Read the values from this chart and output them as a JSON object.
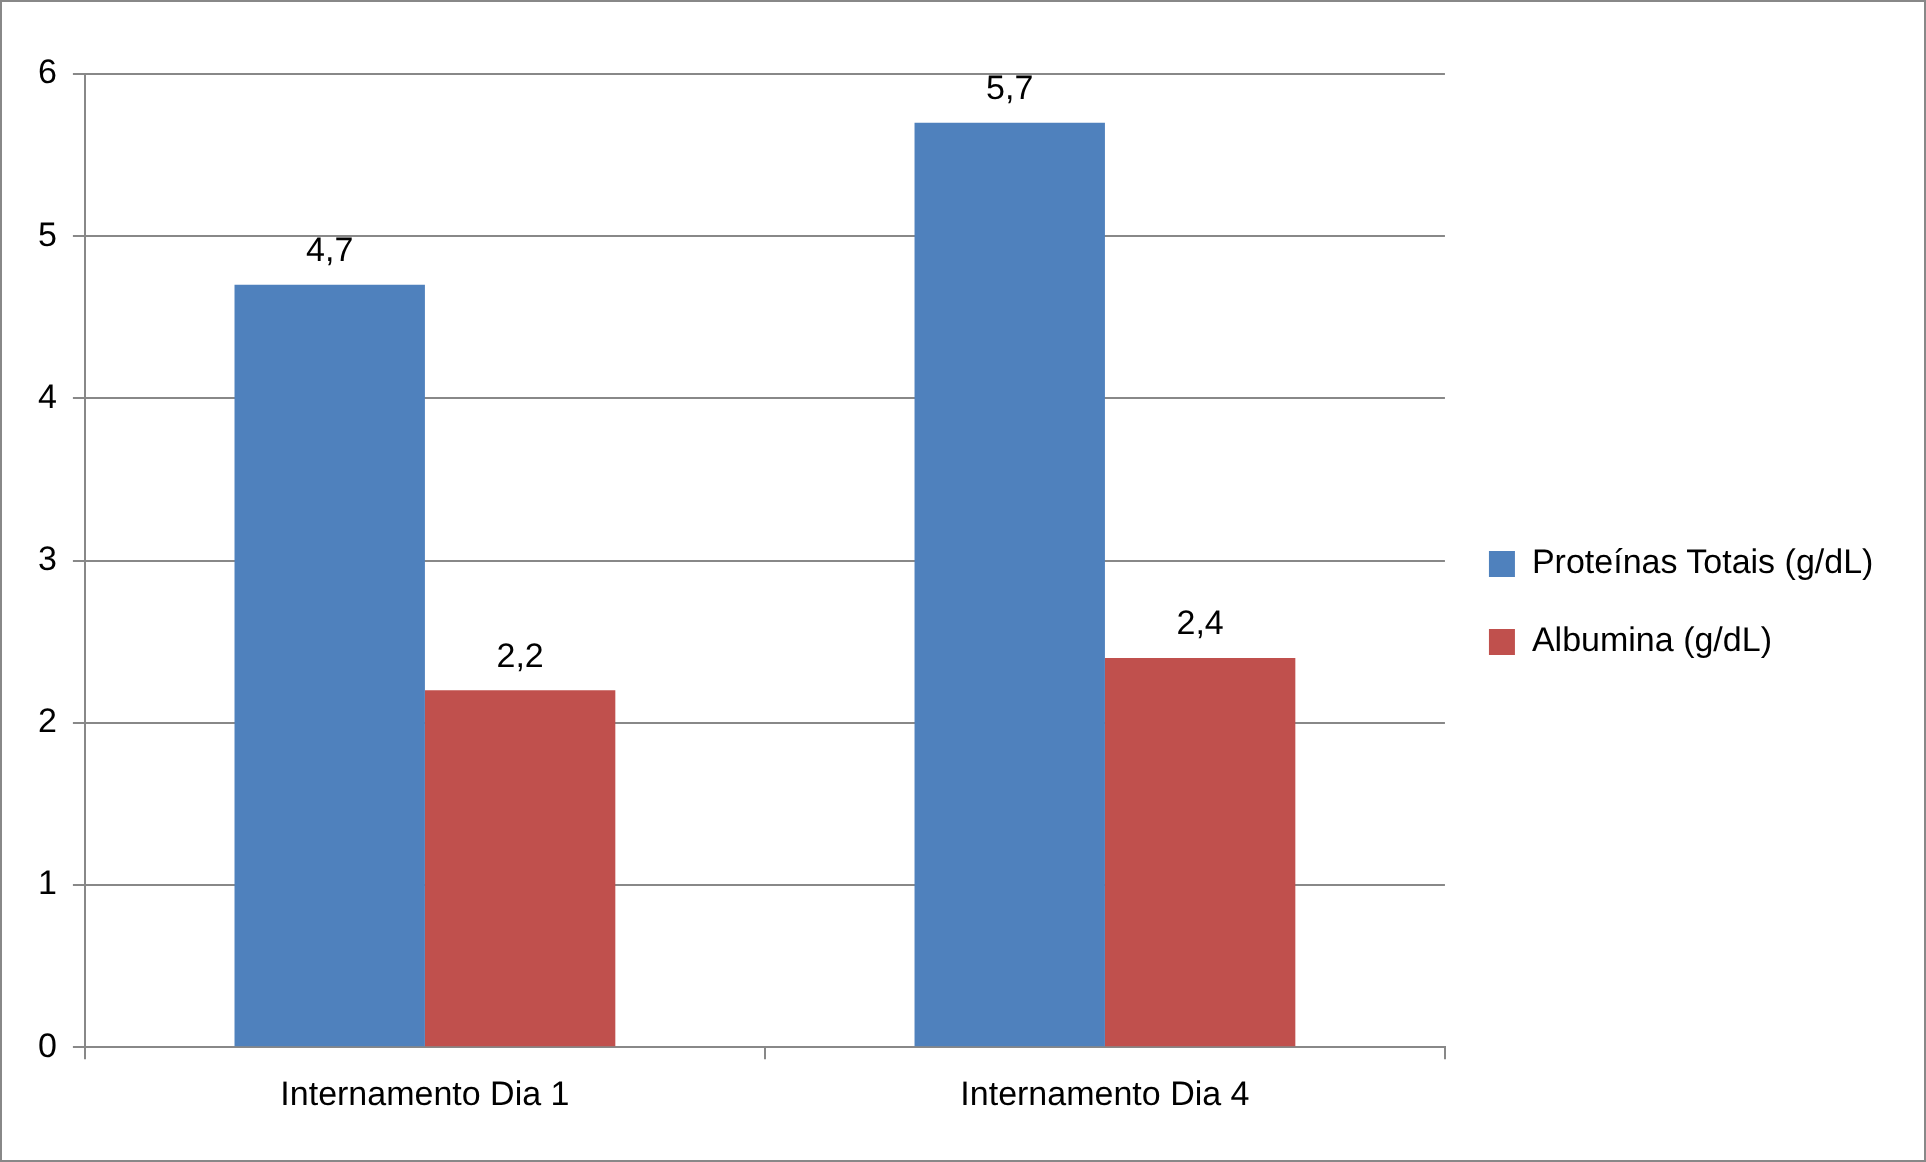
{
  "chart_data": {
    "type": "bar",
    "categories": [
      "Internamento Dia 1",
      "Internamento Dia 4"
    ],
    "series": [
      {
        "name": "Proteínas Totais (g/dL)",
        "color": "#4f81bd",
        "values": [
          4.7,
          5.7
        ],
        "value_labels": [
          "4,7",
          "5,7"
        ]
      },
      {
        "name": "Albumina (g/dL)",
        "color": "#c0504d",
        "values": [
          2.2,
          2.4
        ],
        "value_labels": [
          "2,2",
          "2,4"
        ]
      }
    ],
    "ylim": [
      0,
      6
    ],
    "yticks": [
      0,
      1,
      2,
      3,
      4,
      5,
      6
    ],
    "grid": "y",
    "legend": "right"
  }
}
